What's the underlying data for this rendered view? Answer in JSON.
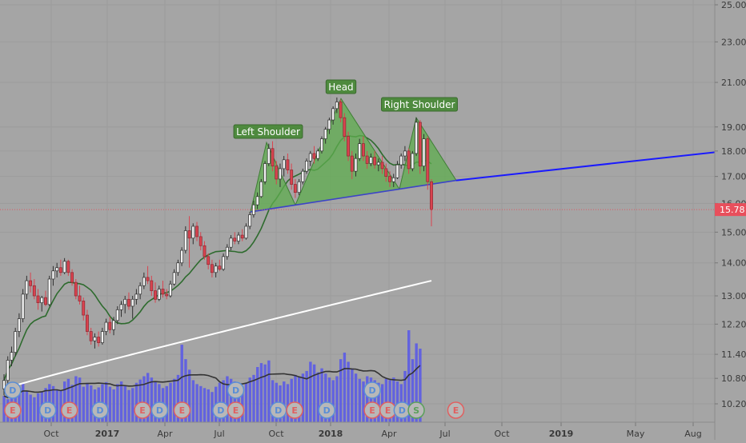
{
  "chart_data": {
    "type": "candlestick",
    "y_scale": "log",
    "y_ticks": [
      25.0,
      23.0,
      21.0,
      19.0,
      18.0,
      17.0,
      16.0,
      15.0,
      14.0,
      13.0,
      12.2,
      11.4,
      10.8,
      10.2
    ],
    "x_ticks": [
      "Oct",
      "2017",
      "Apr",
      "Jul",
      "Oct",
      "2018",
      "Apr",
      "Jul",
      "Oct",
      "2019",
      "May",
      "Aug"
    ],
    "last_price_label": "15.78",
    "last_price": 15.78,
    "pattern_labels": {
      "left_shoulder": "Left Shoulder",
      "head": "Head",
      "right_shoulder": "Right Shoulder"
    },
    "neckline": {
      "start": 15.7,
      "end": 16.85,
      "extended_end": 17.95
    },
    "pattern_points": [
      {
        "name": "left-shoulder-base-start",
        "price": 15.7
      },
      {
        "name": "left-shoulder-peak",
        "price": 18.35
      },
      {
        "name": "left-shoulder-trough",
        "price": 16.2
      },
      {
        "name": "head-peak",
        "price": 20.25
      },
      {
        "name": "right-shoulder-trough",
        "price": 16.6
      },
      {
        "name": "right-shoulder-peak",
        "price": 19.4
      },
      {
        "name": "neckline-end",
        "price": 16.85
      }
    ],
    "candles": [
      {
        "o": 10.55,
        "h": 10.9,
        "l": 10.4,
        "c": 10.75
      },
      {
        "o": 10.75,
        "h": 11.35,
        "l": 10.65,
        "c": 11.25
      },
      {
        "o": 11.25,
        "h": 11.6,
        "l": 11.1,
        "c": 11.45
      },
      {
        "o": 11.45,
        "h": 12.1,
        "l": 11.35,
        "c": 12.0
      },
      {
        "o": 12.0,
        "h": 12.5,
        "l": 11.85,
        "c": 12.35
      },
      {
        "o": 12.35,
        "h": 13.2,
        "l": 12.25,
        "c": 13.05
      },
      {
        "o": 13.05,
        "h": 13.6,
        "l": 12.9,
        "c": 13.45
      },
      {
        "o": 13.45,
        "h": 13.7,
        "l": 13.1,
        "c": 13.3
      },
      {
        "o": 13.3,
        "h": 13.5,
        "l": 12.9,
        "c": 13.0
      },
      {
        "o": 13.0,
        "h": 13.2,
        "l": 12.6,
        "c": 12.8
      },
      {
        "o": 12.8,
        "h": 13.0,
        "l": 12.55,
        "c": 12.95
      },
      {
        "o": 12.95,
        "h": 13.15,
        "l": 12.7,
        "c": 12.75
      },
      {
        "o": 12.75,
        "h": 13.6,
        "l": 12.7,
        "c": 13.5
      },
      {
        "o": 13.5,
        "h": 13.9,
        "l": 13.3,
        "c": 13.75
      },
      {
        "o": 13.75,
        "h": 14.0,
        "l": 13.55,
        "c": 13.85
      },
      {
        "o": 13.85,
        "h": 14.1,
        "l": 13.6,
        "c": 13.7
      },
      {
        "o": 13.7,
        "h": 14.15,
        "l": 13.65,
        "c": 14.05
      },
      {
        "o": 14.05,
        "h": 14.1,
        "l": 13.6,
        "c": 13.7
      },
      {
        "o": 13.7,
        "h": 13.8,
        "l": 13.3,
        "c": 13.4
      },
      {
        "o": 13.4,
        "h": 13.5,
        "l": 12.9,
        "c": 13.0
      },
      {
        "o": 13.0,
        "h": 13.3,
        "l": 12.75,
        "c": 12.85
      },
      {
        "o": 12.85,
        "h": 12.95,
        "l": 12.3,
        "c": 12.45
      },
      {
        "o": 12.45,
        "h": 12.6,
        "l": 11.9,
        "c": 12.0
      },
      {
        "o": 12.0,
        "h": 12.1,
        "l": 11.65,
        "c": 11.75
      },
      {
        "o": 11.75,
        "h": 11.95,
        "l": 11.55,
        "c": 11.85
      },
      {
        "o": 11.85,
        "h": 12.0,
        "l": 11.6,
        "c": 11.7
      },
      {
        "o": 11.7,
        "h": 12.1,
        "l": 11.65,
        "c": 12.0
      },
      {
        "o": 12.0,
        "h": 12.35,
        "l": 11.9,
        "c": 12.25
      },
      {
        "o": 12.25,
        "h": 12.4,
        "l": 11.95,
        "c": 12.05
      },
      {
        "o": 12.05,
        "h": 12.4,
        "l": 11.9,
        "c": 12.3
      },
      {
        "o": 12.3,
        "h": 12.7,
        "l": 12.2,
        "c": 12.6
      },
      {
        "o": 12.6,
        "h": 12.85,
        "l": 12.4,
        "c": 12.75
      },
      {
        "o": 12.75,
        "h": 13.0,
        "l": 12.5,
        "c": 12.9
      },
      {
        "o": 12.9,
        "h": 13.1,
        "l": 12.6,
        "c": 12.7
      },
      {
        "o": 12.7,
        "h": 13.0,
        "l": 12.35,
        "c": 12.9
      },
      {
        "o": 12.9,
        "h": 13.2,
        "l": 12.75,
        "c": 13.05
      },
      {
        "o": 13.05,
        "h": 13.4,
        "l": 12.9,
        "c": 13.3
      },
      {
        "o": 13.3,
        "h": 13.7,
        "l": 13.2,
        "c": 13.55
      },
      {
        "o": 13.55,
        "h": 13.9,
        "l": 13.35,
        "c": 13.45
      },
      {
        "o": 13.45,
        "h": 13.6,
        "l": 13.0,
        "c": 13.15
      },
      {
        "o": 13.15,
        "h": 13.4,
        "l": 12.8,
        "c": 12.9
      },
      {
        "o": 12.9,
        "h": 13.3,
        "l": 12.85,
        "c": 13.2
      },
      {
        "o": 13.2,
        "h": 13.45,
        "l": 12.95,
        "c": 13.05
      },
      {
        "o": 13.05,
        "h": 13.2,
        "l": 12.9,
        "c": 13.0
      },
      {
        "o": 13.0,
        "h": 13.45,
        "l": 12.95,
        "c": 13.35
      },
      {
        "o": 13.35,
        "h": 13.8,
        "l": 13.3,
        "c": 13.7
      },
      {
        "o": 13.7,
        "h": 14.1,
        "l": 13.6,
        "c": 14.0
      },
      {
        "o": 14.0,
        "h": 14.5,
        "l": 13.9,
        "c": 14.4
      },
      {
        "o": 14.4,
        "h": 15.2,
        "l": 14.3,
        "c": 15.05
      },
      {
        "o": 15.05,
        "h": 15.55,
        "l": 13.85,
        "c": 14.8
      },
      {
        "o": 14.8,
        "h": 15.3,
        "l": 14.6,
        "c": 15.2
      },
      {
        "o": 15.2,
        "h": 15.35,
        "l": 14.7,
        "c": 14.85
      },
      {
        "o": 14.85,
        "h": 15.0,
        "l": 14.4,
        "c": 14.55
      },
      {
        "o": 14.55,
        "h": 14.7,
        "l": 14.1,
        "c": 14.2
      },
      {
        "o": 14.2,
        "h": 14.3,
        "l": 13.8,
        "c": 13.95
      },
      {
        "o": 13.95,
        "h": 14.1,
        "l": 13.55,
        "c": 13.7
      },
      {
        "o": 13.7,
        "h": 14.0,
        "l": 13.55,
        "c": 13.9
      },
      {
        "o": 13.9,
        "h": 14.1,
        "l": 13.75,
        "c": 13.8
      },
      {
        "o": 13.8,
        "h": 14.3,
        "l": 13.75,
        "c": 14.2
      },
      {
        "o": 14.2,
        "h": 14.6,
        "l": 14.1,
        "c": 14.5
      },
      {
        "o": 14.5,
        "h": 14.9,
        "l": 14.4,
        "c": 14.8
      },
      {
        "o": 14.8,
        "h": 15.0,
        "l": 14.6,
        "c": 14.7
      },
      {
        "o": 14.7,
        "h": 15.0,
        "l": 14.6,
        "c": 14.9
      },
      {
        "o": 14.9,
        "h": 15.1,
        "l": 14.7,
        "c": 14.8
      },
      {
        "o": 14.8,
        "h": 15.3,
        "l": 14.75,
        "c": 15.2
      },
      {
        "o": 15.2,
        "h": 15.7,
        "l": 15.1,
        "c": 15.6
      },
      {
        "o": 15.6,
        "h": 16.1,
        "l": 15.5,
        "c": 15.95
      },
      {
        "o": 15.95,
        "h": 16.4,
        "l": 15.8,
        "c": 16.25
      },
      {
        "o": 16.25,
        "h": 16.9,
        "l": 16.2,
        "c": 16.8
      },
      {
        "o": 16.8,
        "h": 17.6,
        "l": 16.7,
        "c": 17.5
      },
      {
        "o": 17.5,
        "h": 18.3,
        "l": 17.4,
        "c": 18.1
      },
      {
        "o": 18.1,
        "h": 18.4,
        "l": 17.2,
        "c": 17.4
      },
      {
        "o": 17.4,
        "h": 17.6,
        "l": 16.7,
        "c": 16.9
      },
      {
        "o": 16.9,
        "h": 17.5,
        "l": 16.6,
        "c": 17.3
      },
      {
        "o": 17.3,
        "h": 17.8,
        "l": 17.0,
        "c": 17.65
      },
      {
        "o": 17.65,
        "h": 17.9,
        "l": 17.1,
        "c": 17.25
      },
      {
        "o": 17.25,
        "h": 17.5,
        "l": 16.5,
        "c": 16.7
      },
      {
        "o": 16.7,
        "h": 16.9,
        "l": 16.2,
        "c": 16.4
      },
      {
        "o": 16.4,
        "h": 16.9,
        "l": 16.3,
        "c": 16.8
      },
      {
        "o": 16.8,
        "h": 17.3,
        "l": 16.7,
        "c": 17.2
      },
      {
        "o": 17.2,
        "h": 17.7,
        "l": 17.1,
        "c": 17.6
      },
      {
        "o": 17.6,
        "h": 18.0,
        "l": 17.4,
        "c": 17.9
      },
      {
        "o": 17.9,
        "h": 18.2,
        "l": 17.5,
        "c": 17.7
      },
      {
        "o": 17.7,
        "h": 18.1,
        "l": 17.6,
        "c": 18.0
      },
      {
        "o": 18.0,
        "h": 18.6,
        "l": 17.9,
        "c": 18.5
      },
      {
        "o": 18.5,
        "h": 19.0,
        "l": 18.3,
        "c": 18.9
      },
      {
        "o": 18.9,
        "h": 19.4,
        "l": 18.7,
        "c": 19.3
      },
      {
        "o": 19.3,
        "h": 19.9,
        "l": 19.1,
        "c": 19.8
      },
      {
        "o": 19.8,
        "h": 20.3,
        "l": 19.6,
        "c": 20.1
      },
      {
        "o": 20.1,
        "h": 20.2,
        "l": 19.2,
        "c": 19.4
      },
      {
        "o": 19.4,
        "h": 19.6,
        "l": 18.4,
        "c": 18.6
      },
      {
        "o": 18.6,
        "h": 18.8,
        "l": 17.6,
        "c": 17.8
      },
      {
        "o": 17.8,
        "h": 18.0,
        "l": 16.9,
        "c": 17.2
      },
      {
        "o": 17.2,
        "h": 17.9,
        "l": 17.0,
        "c": 17.7
      },
      {
        "o": 17.7,
        "h": 18.5,
        "l": 17.6,
        "c": 18.3
      },
      {
        "o": 18.3,
        "h": 18.6,
        "l": 17.6,
        "c": 17.8
      },
      {
        "o": 17.8,
        "h": 18.0,
        "l": 17.3,
        "c": 17.5
      },
      {
        "o": 17.5,
        "h": 17.9,
        "l": 17.4,
        "c": 17.75
      },
      {
        "o": 17.75,
        "h": 18.0,
        "l": 17.3,
        "c": 17.45
      },
      {
        "o": 17.45,
        "h": 17.7,
        "l": 17.2,
        "c": 17.55
      },
      {
        "o": 17.55,
        "h": 17.8,
        "l": 17.1,
        "c": 17.3
      },
      {
        "o": 17.3,
        "h": 17.5,
        "l": 16.8,
        "c": 17.0
      },
      {
        "o": 17.0,
        "h": 17.2,
        "l": 16.6,
        "c": 16.8
      },
      {
        "o": 16.8,
        "h": 17.1,
        "l": 16.6,
        "c": 16.95
      },
      {
        "o": 16.95,
        "h": 17.6,
        "l": 16.9,
        "c": 17.45
      },
      {
        "o": 17.45,
        "h": 17.9,
        "l": 17.3,
        "c": 17.8
      },
      {
        "o": 17.8,
        "h": 18.2,
        "l": 17.6,
        "c": 18.0
      },
      {
        "o": 18.0,
        "h": 18.1,
        "l": 17.1,
        "c": 17.3
      },
      {
        "o": 17.3,
        "h": 18.0,
        "l": 17.2,
        "c": 17.9
      },
      {
        "o": 17.9,
        "h": 19.4,
        "l": 17.8,
        "c": 19.2
      },
      {
        "o": 19.2,
        "h": 19.3,
        "l": 17.1,
        "c": 17.4
      },
      {
        "o": 17.4,
        "h": 18.7,
        "l": 17.2,
        "c": 18.5
      },
      {
        "o": 18.5,
        "h": 18.6,
        "l": 16.5,
        "c": 16.8
      },
      {
        "o": 16.8,
        "h": 16.9,
        "l": 15.2,
        "c": 15.78
      }
    ],
    "volume": [
      40,
      35,
      55,
      45,
      50,
      60,
      48,
      42,
      38,
      44,
      46,
      52,
      58,
      55,
      50,
      48,
      62,
      66,
      57,
      70,
      68,
      54,
      60,
      56,
      50,
      53,
      58,
      61,
      54,
      50,
      58,
      62,
      55,
      49,
      52,
      60,
      65,
      70,
      75,
      68,
      62,
      58,
      52,
      55,
      60,
      66,
      72,
      118,
      96,
      80,
      64,
      58,
      55,
      52,
      50,
      46,
      54,
      60,
      64,
      70,
      66,
      62,
      58,
      54,
      60,
      68,
      72,
      84,
      90,
      88,
      94,
      64,
      60,
      56,
      62,
      58,
      66,
      72,
      70,
      74,
      78,
      92,
      88,
      76,
      82,
      74,
      68,
      64,
      70,
      96,
      106,
      92,
      82,
      74,
      66,
      62,
      70,
      68,
      64,
      60,
      58,
      66,
      64,
      68,
      62,
      58,
      78,
      140,
      96,
      120,
      112
    ],
    "event_markers": [
      {
        "label": "E",
        "row": 0,
        "pos": 0.017
      },
      {
        "label": "D",
        "row": 1,
        "pos": 0.017
      },
      {
        "label": "D",
        "row": 0,
        "pos": 0.064
      },
      {
        "label": "E",
        "row": 0,
        "pos": 0.093
      },
      {
        "label": "D",
        "row": 0,
        "pos": 0.134
      },
      {
        "label": "E",
        "row": 0,
        "pos": 0.191
      },
      {
        "label": "D",
        "row": 0,
        "pos": 0.214
      },
      {
        "label": "E",
        "row": 0,
        "pos": 0.244
      },
      {
        "label": "D",
        "row": 0,
        "pos": 0.296
      },
      {
        "label": "E",
        "row": 0,
        "pos": 0.316
      },
      {
        "label": "D",
        "row": 1,
        "pos": 0.316
      },
      {
        "label": "D",
        "row": 0,
        "pos": 0.373
      },
      {
        "label": "E",
        "row": 0,
        "pos": 0.395
      },
      {
        "label": "D",
        "row": 0,
        "pos": 0.438
      },
      {
        "label": "E",
        "row": 0,
        "pos": 0.499
      },
      {
        "label": "D",
        "row": 1,
        "pos": 0.499
      },
      {
        "label": "E",
        "row": 0,
        "pos": 0.52
      },
      {
        "label": "D",
        "row": 0,
        "pos": 0.539
      },
      {
        "label": "S",
        "row": 0,
        "pos": 0.558
      },
      {
        "label": "E",
        "row": 0,
        "pos": 0.611
      }
    ],
    "colors": {
      "background": "#a5a5a5",
      "up_candle": "#f2f2f2",
      "down_candle": "#d9434f",
      "candle_outline": "#2f2f2f",
      "volume": "#5b5be6",
      "sma_short": "#2e6b2e",
      "sma_long": "#ffffff",
      "volume_ma": "#333333",
      "neckline": "#3d44c8",
      "neckline_extension": "#1a1aff",
      "pattern_fill": "#5fae4f",
      "pattern_stroke": "#3e7e34",
      "label_bg": "#4e8a3e",
      "price_line": "#e05560",
      "price_tag": "#e84f5c",
      "marker_d": "#5a8ed6",
      "marker_e": "#e06060",
      "marker_s": "#5aa05a"
    }
  }
}
